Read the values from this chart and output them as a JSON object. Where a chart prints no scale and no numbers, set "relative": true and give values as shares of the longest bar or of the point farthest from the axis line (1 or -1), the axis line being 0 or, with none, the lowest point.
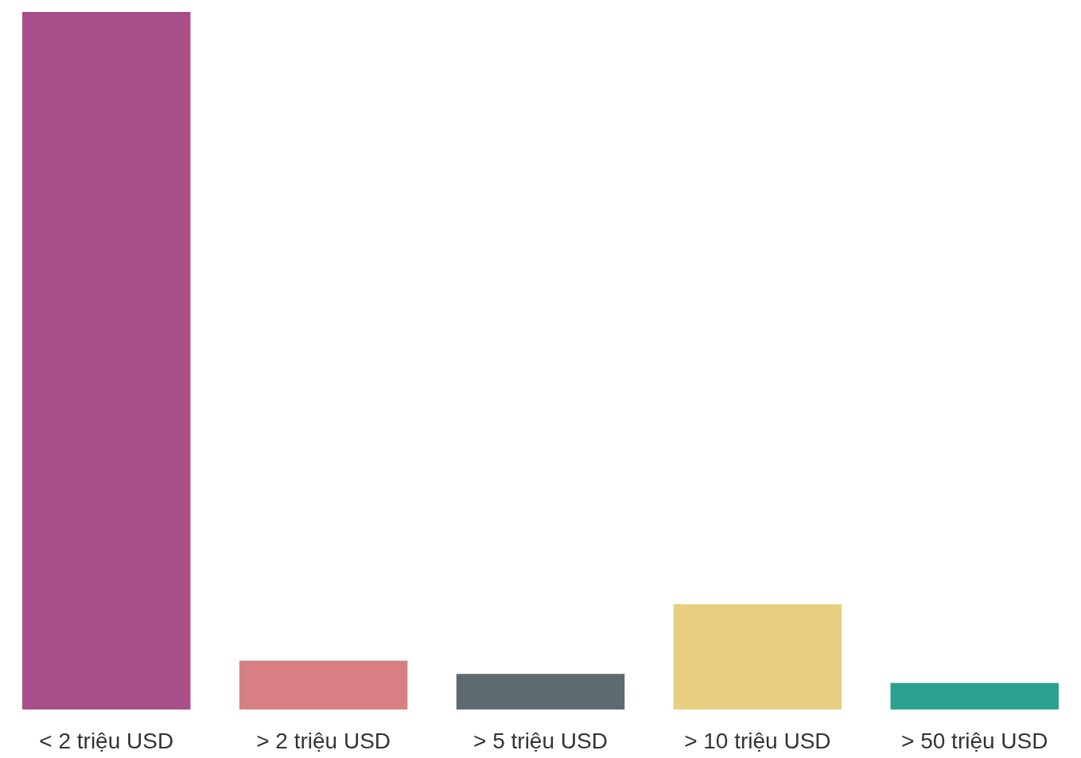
{
  "chart_data": {
    "type": "bar",
    "relative": true,
    "categories": [
      "< 2 triệu USD",
      "> 2 triệu USD",
      "> 5 triệu USD",
      "> 10 triệu USD",
      "> 50 triệu USD"
    ],
    "values": [
      1,
      0.07,
      0.051,
      0.151,
      0.038
    ],
    "colors": [
      "#a84e88",
      "#d77f83",
      "#5d6a6f",
      "#e7ce80",
      "#2ba190"
    ]
  }
}
